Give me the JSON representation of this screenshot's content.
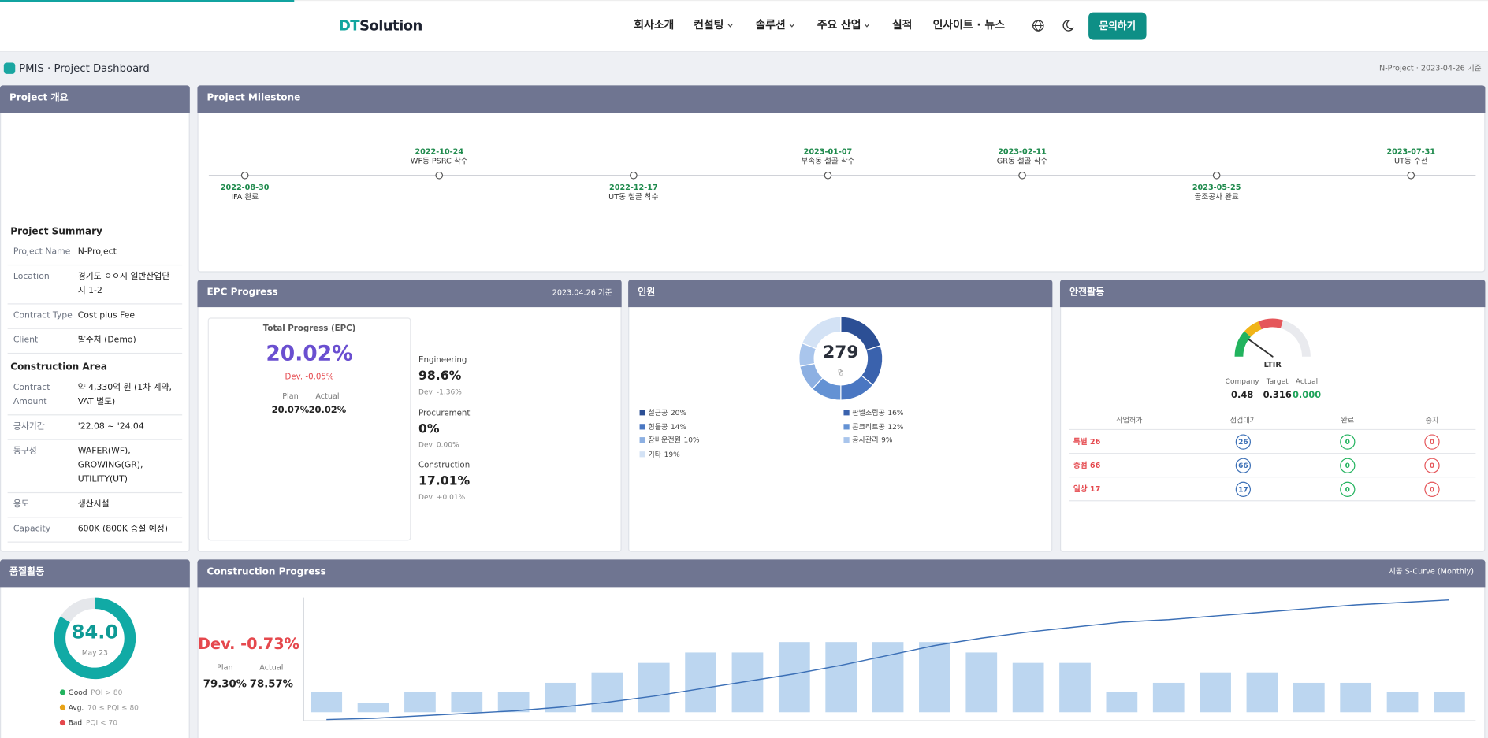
{
  "header": {
    "logo": {
      "accent": "DT",
      "text": "Solution"
    },
    "nav": [
      {
        "label": "회사소개",
        "dropdown": false
      },
      {
        "label": "컨설팅",
        "dropdown": true
      },
      {
        "label": "솔루션",
        "dropdown": true
      },
      {
        "label": "주요 산업",
        "dropdown": true
      },
      {
        "label": "실적",
        "dropdown": false
      },
      {
        "label": "인사이트 · 뉴스",
        "dropdown": false
      }
    ],
    "cta": "문의하기"
  },
  "subheader": {
    "title": "PMIS · Project Dashboard",
    "meta": "N-Project · 2023-04-26 기준"
  },
  "overview": {
    "title": "Project 개요",
    "sections": [
      {
        "heading": "Project Summary",
        "rows": [
          [
            "Project Name",
            "N-Project"
          ],
          [
            "Location",
            "경기도 ㅇㅇ시 일반산업단지 1-2"
          ],
          [
            "Contract Type",
            "Cost plus Fee"
          ],
          [
            "Client",
            "발주처 (Demo)"
          ]
        ]
      },
      {
        "heading": "Construction Area",
        "rows": [
          [
            "Contract Amount",
            "약 4,330억 원 (1차 계약, VAT 별도)"
          ],
          [
            "공사기간",
            "'22.08 ~ '24.04"
          ],
          [
            "동구성",
            "WAFER(WF), GROWING(GR), UTILITY(UT)"
          ],
          [
            "용도",
            "생산시설"
          ],
          [
            "Capacity",
            "600K (800K 증설 예정)"
          ]
        ]
      }
    ]
  },
  "milestone": {
    "title": "Project Milestone",
    "items": [
      {
        "date": "2022-08-30",
        "label": "IFA 완료",
        "position": "below"
      },
      {
        "date": "2022-10-24",
        "label": "WF동 PSRC 착수",
        "position": "above"
      },
      {
        "date": "2022-12-17",
        "label": "UT동 철골 착수",
        "position": "below"
      },
      {
        "date": "2023-01-07",
        "label": "부속동 철골 착수",
        "position": "above"
      },
      {
        "date": "2023-02-11",
        "label": "GR동 철골 착수",
        "position": "above"
      },
      {
        "date": "2023-05-25",
        "label": "골조공사 완료",
        "position": "below"
      },
      {
        "date": "2023-07-31",
        "label": "UT동 수전",
        "position": "above"
      }
    ]
  },
  "epc": {
    "title": "EPC Progress",
    "date": "2023.04.26 기준",
    "total": {
      "title": "Total Progress (EPC)",
      "value": "20.02%",
      "dev": "Dev. -0.05%",
      "plan_label": "Plan",
      "plan": "20.07%",
      "actual_label": "Actual",
      "actual": "20.02%"
    },
    "parts": [
      {
        "name": "Engineering",
        "value": "98.6%",
        "dev": "Dev. -1.36%"
      },
      {
        "name": "Procurement",
        "value": "0%",
        "dev": "Dev. 0.00%"
      },
      {
        "name": "Construction",
        "value": "17.01%",
        "dev": "Dev. +0.01%"
      }
    ]
  },
  "personnel": {
    "title": "인원",
    "total": "279",
    "unit": "명",
    "chart_data": {
      "type": "pie",
      "categories": [
        "철근공",
        "판넬조립공",
        "형틀공",
        "콘크리트공",
        "장비운전원",
        "공사관리",
        "기타"
      ],
      "values": [
        20,
        16,
        14,
        12,
        10,
        9,
        19
      ],
      "value_labels": [
        "20%",
        "16%",
        "14%",
        "12%",
        "10%",
        "9%",
        "19%"
      ],
      "colors": [
        "#2c4f95",
        "#3a62ad",
        "#4a77c2",
        "#6492d4",
        "#8db0e2",
        "#a9c5ec",
        "#d3e2f5"
      ]
    }
  },
  "safety": {
    "title": "안전활동",
    "gauge_label": "LTIR",
    "stats": [
      {
        "label": "Company",
        "value": "0.48"
      },
      {
        "label": "Target",
        "value": "0.316"
      },
      {
        "label": "Actual",
        "value": "0.000"
      }
    ],
    "table": {
      "columns": [
        "작업허가",
        "점검대기",
        "완료",
        "중지"
      ],
      "rows": [
        [
          "특별 26",
          "26",
          "0",
          "0"
        ],
        [
          "중점 66",
          "66",
          "0",
          "0"
        ],
        [
          "일상 17",
          "17",
          "0",
          "0"
        ]
      ]
    }
  },
  "quality": {
    "title": "품질활동",
    "score": "84.0",
    "period": "May 23",
    "legend": [
      {
        "name": "Good",
        "rule": "PQI > 80",
        "color": "#22b35e"
      },
      {
        "name": "Avg.",
        "rule": "70 ≤ PQI ≤ 80",
        "color": "#e8a317"
      },
      {
        "name": "Bad",
        "rule": "PQI < 70",
        "color": "#e5484d"
      }
    ]
  },
  "construction": {
    "title": "Construction Progress",
    "subtitle": "시공 S-Curve (Monthly)",
    "dev": "Dev. -0.73%",
    "plan_label": "Plan",
    "plan": "79.30%",
    "actual_label": "Actual",
    "actual": "78.57%",
    "chart_data": {
      "type": "bar_line",
      "ylim": [
        0,
        80
      ],
      "y2lim": [
        0,
        100
      ],
      "series": [
        {
          "type": "bar",
          "color": "#bcd6f0",
          "values": [
            21,
            10,
            21,
            21,
            21,
            31,
            42,
            52,
            63,
            63,
            74,
            74,
            74,
            74,
            63,
            52,
            52,
            21,
            31,
            42,
            42,
            31,
            31,
            21,
            21
          ]
        },
        {
          "type": "line",
          "axis": "y2",
          "color": "#3b6fb6",
          "values": [
            1,
            2,
            4,
            6,
            8,
            11,
            15,
            20,
            26,
            32,
            38,
            45,
            53,
            61,
            67,
            72,
            76,
            80,
            82,
            85,
            88,
            91,
            94,
            96,
            98
          ]
        }
      ]
    }
  }
}
